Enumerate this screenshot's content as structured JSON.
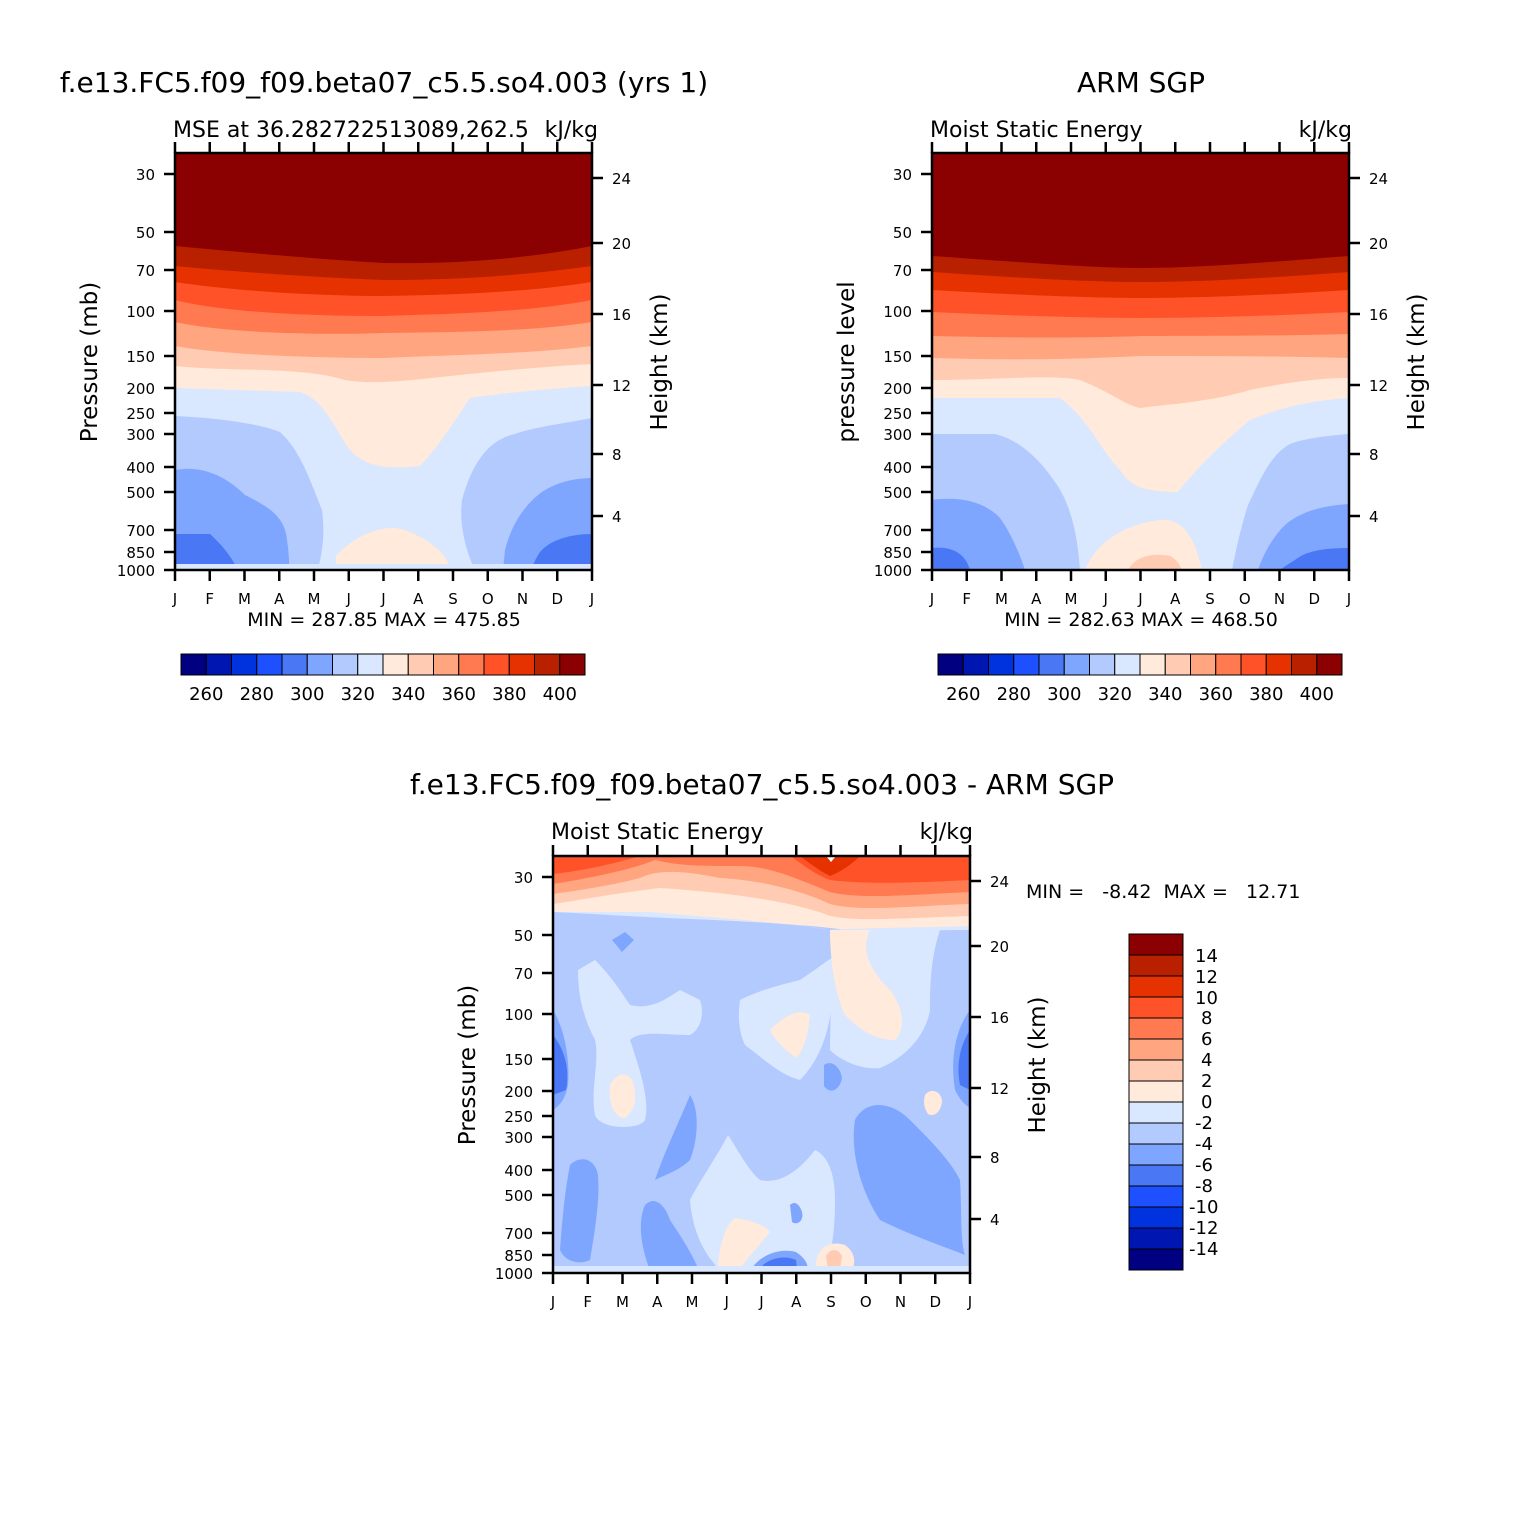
{
  "page": {
    "label_colors": {
      "seq": [
        "#000080",
        "#0016b0",
        "#0033dd",
        "#1e50ff",
        "#4a78f5",
        "#7fa6ff",
        "#b3caff",
        "#d9e8ff",
        "#ffeadb",
        "#ffccb3",
        "#ffa580",
        "#ff7a50",
        "#ff5228",
        "#e63200",
        "#b82000",
        "#8b0000"
      ],
      "diff": [
        "#000080",
        "#0016b0",
        "#0033dd",
        "#1e50ff",
        "#4a78f5",
        "#7fa6ff",
        "#b3caff",
        "#d9e8ff",
        "#ffeadb",
        "#ffccb3",
        "#ffa580",
        "#ff7a50",
        "#ff5228",
        "#e63200",
        "#b82000",
        "#8b0000"
      ]
    }
  },
  "chart_data": [
    {
      "type": "heatmap",
      "id": "model",
      "title": "f.e13.FC5.f09_f09.beta07_c5.5.so4.003 (yrs 1)",
      "subtitle_left": "MSE at 36.282722513089,262.5",
      "subtitle_right": "kJ/kg",
      "ylabel": "Pressure (mb)",
      "y2label": "Height (km)",
      "x_ticks": [
        "J",
        "F",
        "M",
        "A",
        "M",
        "J",
        "J",
        "A",
        "S",
        "O",
        "N",
        "D",
        "J"
      ],
      "y_ticks": [
        "30",
        "50",
        "70",
        "100",
        "150",
        "200",
        "250",
        "300",
        "400",
        "500",
        "700",
        "850",
        "1000"
      ],
      "y2_ticks": [
        "24",
        "20",
        "16",
        "12",
        "8",
        "4"
      ],
      "stats": "MIN =  287.85  MAX =  475.85",
      "colorbar_labels": [
        "260",
        "280",
        "300",
        "320",
        "340",
        "360",
        "380",
        "400"
      ],
      "colorbar_orientation": "horizontal"
    },
    {
      "type": "heatmap",
      "id": "obs",
      "title": "ARM SGP",
      "subtitle_left": "Moist Static Energy",
      "subtitle_right": "kJ/kg",
      "ylabel": "pressure level",
      "y2label": "Height (km)",
      "x_ticks": [
        "J",
        "F",
        "M",
        "A",
        "M",
        "J",
        "J",
        "A",
        "S",
        "O",
        "N",
        "D",
        "J"
      ],
      "y_ticks": [
        "30",
        "50",
        "70",
        "100",
        "150",
        "200",
        "250",
        "300",
        "400",
        "500",
        "700",
        "850",
        "1000"
      ],
      "y2_ticks": [
        "24",
        "20",
        "16",
        "12",
        "8",
        "4"
      ],
      "stats": "MIN =  282.63  MAX =  468.50",
      "colorbar_labels": [
        "260",
        "280",
        "300",
        "320",
        "340",
        "360",
        "380",
        "400"
      ],
      "colorbar_orientation": "horizontal"
    },
    {
      "type": "heatmap",
      "id": "diff",
      "title": "f.e13.FC5.f09_f09.beta07_c5.5.so4.003 - ARM SGP",
      "subtitle_left": "Moist Static Energy",
      "subtitle_right": "kJ/kg",
      "ylabel": "Pressure (mb)",
      "y2label": "Height (km)",
      "x_ticks": [
        "J",
        "F",
        "M",
        "A",
        "M",
        "J",
        "J",
        "A",
        "S",
        "O",
        "N",
        "D",
        "J"
      ],
      "y_ticks": [
        "30",
        "50",
        "70",
        "100",
        "150",
        "200",
        "250",
        "300",
        "400",
        "500",
        "700",
        "850",
        "1000"
      ],
      "y2_ticks": [
        "24",
        "20",
        "16",
        "12",
        "8",
        "4"
      ],
      "stats": "MIN =   -8.42  MAX =   12.71",
      "colorbar_labels": [
        "14",
        "12",
        "10",
        "8",
        "6",
        "4",
        "2",
        "0",
        "-2",
        "-4",
        "-6",
        "-8",
        "-10",
        "-12",
        "-14"
      ],
      "colorbar_orientation": "vertical"
    }
  ]
}
